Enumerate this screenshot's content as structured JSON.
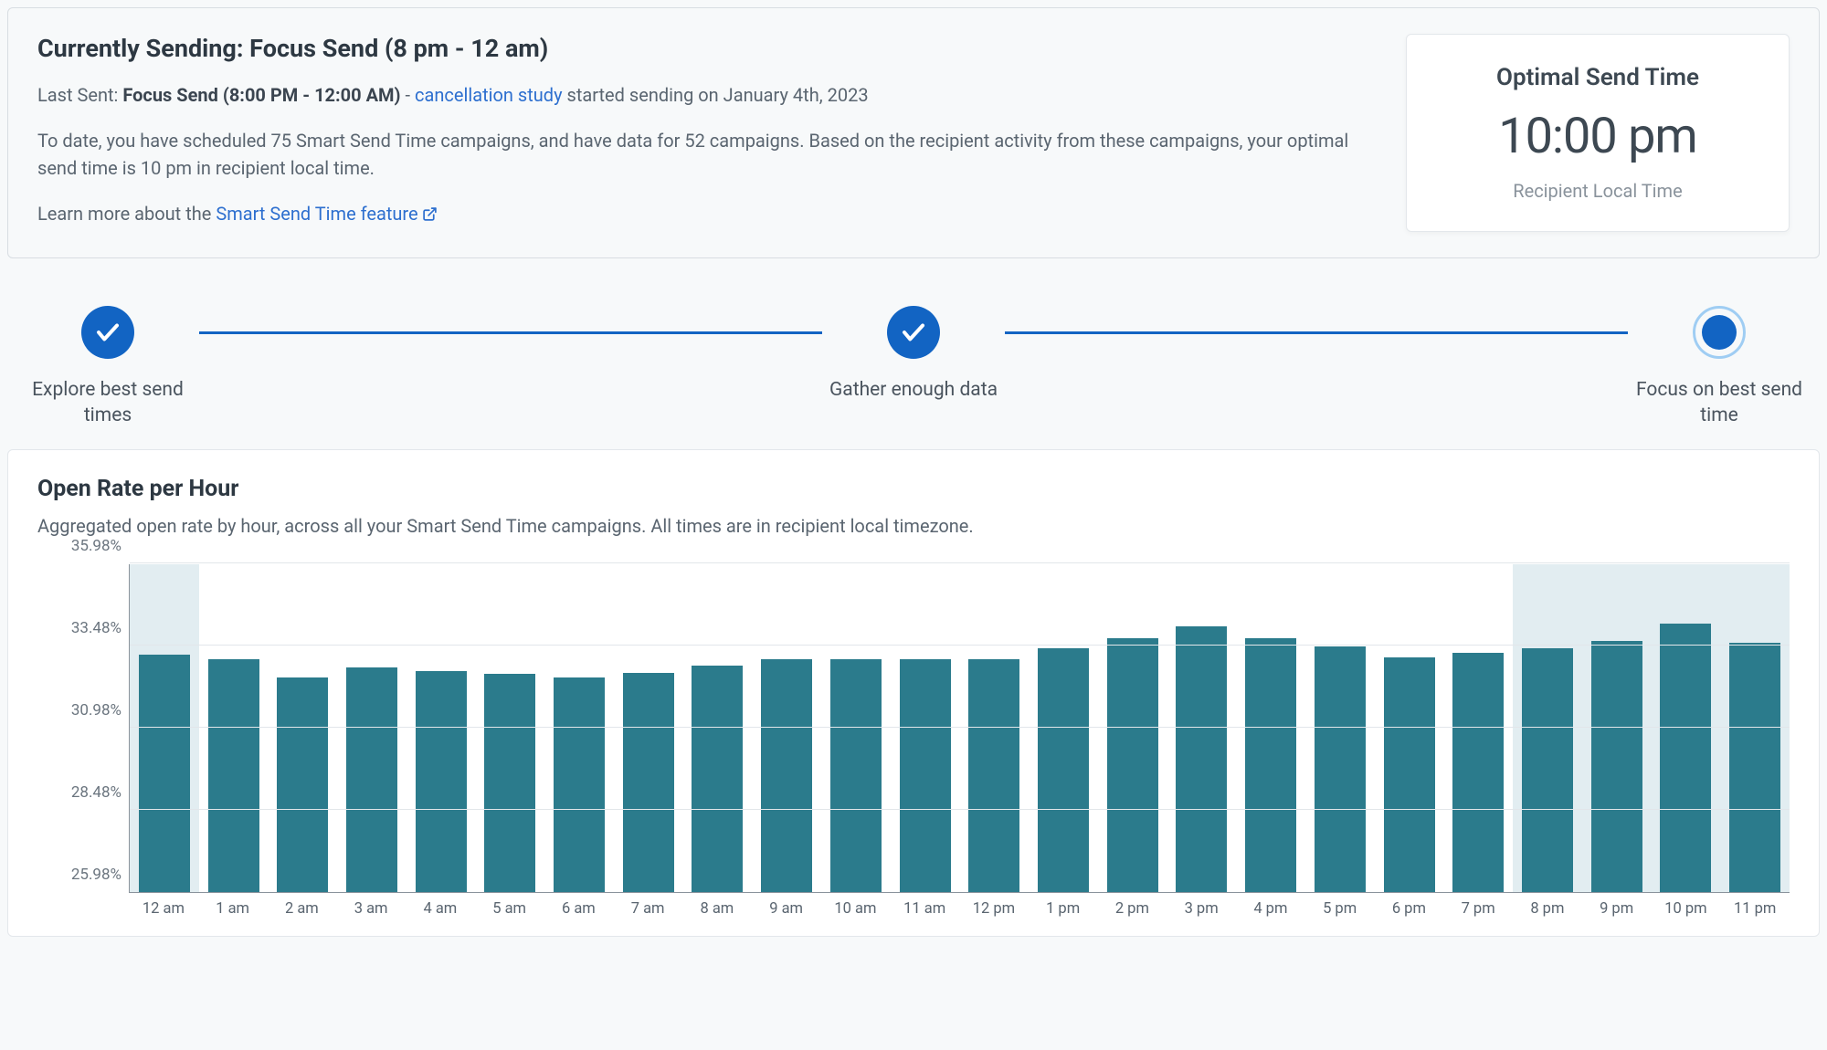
{
  "header": {
    "title": "Currently Sending: Focus Send (8 pm - 12 am)",
    "last_sent_prefix": "Last Sent: ",
    "last_sent_bold": "Focus Send (8:00 PM - 12:00 AM)",
    "last_sent_sep": " - ",
    "last_sent_link": "cancellation study",
    "last_sent_suffix": " started sending on January 4th, 2023",
    "summary": "To date, you have scheduled 75 Smart Send Time campaigns, and have data for 52 campaigns. Based on the recipient activity from these campaigns, your optimal send time is 10 pm in recipient local time.",
    "learn_prefix": "Learn more about the ",
    "learn_link": "Smart Send Time feature"
  },
  "optimal": {
    "title": "Optimal Send Time",
    "time": "10:00 pm",
    "subtitle": "Recipient Local Time"
  },
  "stepper": {
    "step1": "Explore best send times",
    "step2": "Gather enough data",
    "step3": "Focus on best send time",
    "accent_color": "#1264c3",
    "ring_color": "#9fcdf3"
  },
  "chart": {
    "title": "Open Rate per Hour",
    "subtitle": "Aggregated open rate by hour, across all your Smart Send Time campaigns. All times are in recipient local timezone.",
    "type": "bar",
    "ymin": 25.98,
    "ymax": 35.98,
    "yticks": [
      25.98,
      28.48,
      30.98,
      33.48,
      35.98
    ],
    "ytick_labels": [
      "25.98%",
      "28.48%",
      "30.98%",
      "33.48%",
      "35.98%"
    ],
    "bar_color": "#2b7b8c",
    "grid_color": "#e2e6ea",
    "axis_color": "#8a939c",
    "highlight_color": "#dbe8ed",
    "background_color": "#ffffff",
    "bar_width": 0.74,
    "highlight_ranges": [
      [
        0,
        1
      ],
      [
        20,
        24
      ]
    ],
    "categories": [
      "12 am",
      "1 am",
      "2 am",
      "3 am",
      "4 am",
      "5 am",
      "6 am",
      "7 am",
      "8 am",
      "9 am",
      "10 am",
      "11 am",
      "12 pm",
      "1 pm",
      "2 pm",
      "3 pm",
      "4 pm",
      "5 pm",
      "6 pm",
      "7 pm",
      "8 pm",
      "9 pm",
      "10 pm",
      "11 pm"
    ],
    "values": [
      33.2,
      33.05,
      32.5,
      32.8,
      32.7,
      32.6,
      32.5,
      32.65,
      32.85,
      33.05,
      33.05,
      33.05,
      33.05,
      33.4,
      33.7,
      34.05,
      33.7,
      33.45,
      33.1,
      33.25,
      33.4,
      33.6,
      34.15,
      33.55
    ]
  }
}
